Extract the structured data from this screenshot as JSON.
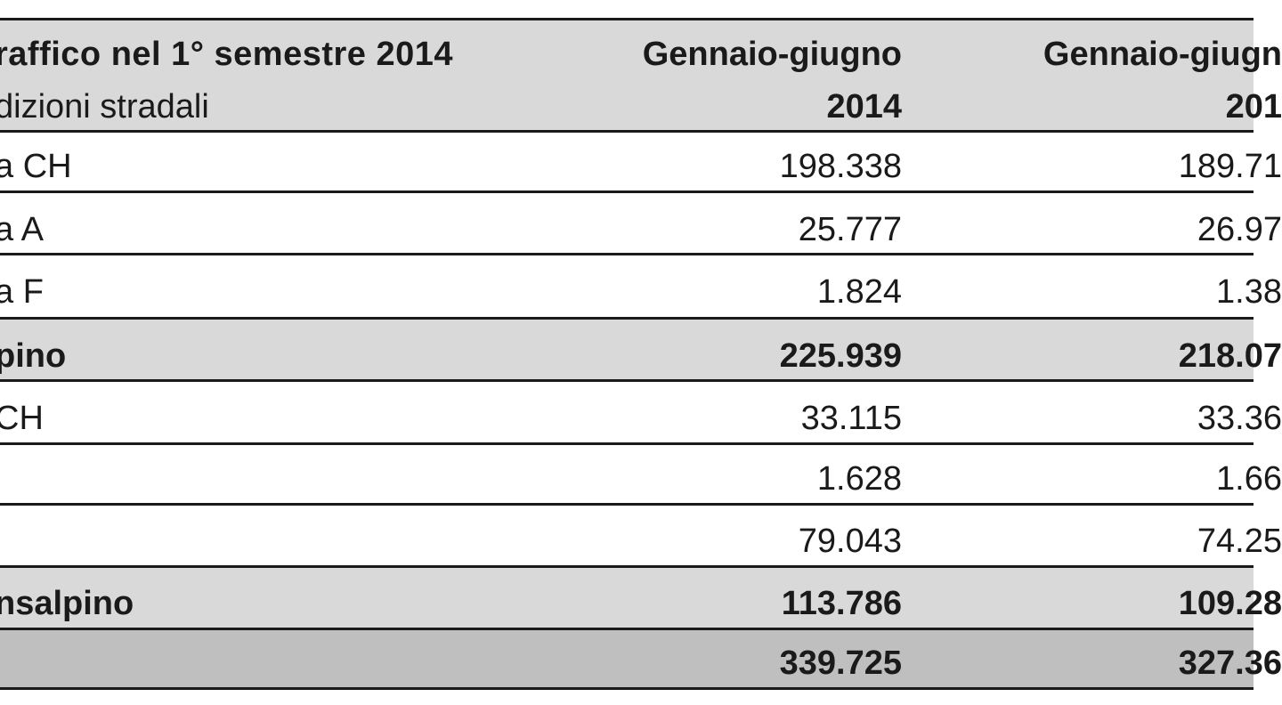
{
  "header": {
    "title": "raffico  nel 1° semestre  2014",
    "subtitle": "dizioni stradali",
    "col2_line1": "Gennaio-giugno",
    "col2_line2": "2014",
    "col3_line1": "Gennaio-giugn",
    "col3_line2": "201"
  },
  "rows": [
    {
      "label": "a CH",
      "v2014": "198.338",
      "vprev": "189.71"
    },
    {
      "label": "a A",
      "v2014": "25.777",
      "vprev": "26.97"
    },
    {
      "label": "a F",
      "v2014": "1.824",
      "vprev": "1.38"
    },
    {
      "label": "pino",
      "v2014": "225.939",
      "vprev": "218.07"
    },
    {
      "label": "CH",
      "v2014": "33.115",
      "vprev": "33.36"
    },
    {
      "label": "",
      "v2014": "1.628",
      "vprev": "1.66"
    },
    {
      "label": "",
      "v2014": "79.043",
      "vprev": "74.25"
    },
    {
      "label": "nsalpino",
      "v2014": "113.786",
      "vprev": "109.28"
    },
    {
      "label": "",
      "v2014": "339.725",
      "vprev": "327.36"
    }
  ]
}
